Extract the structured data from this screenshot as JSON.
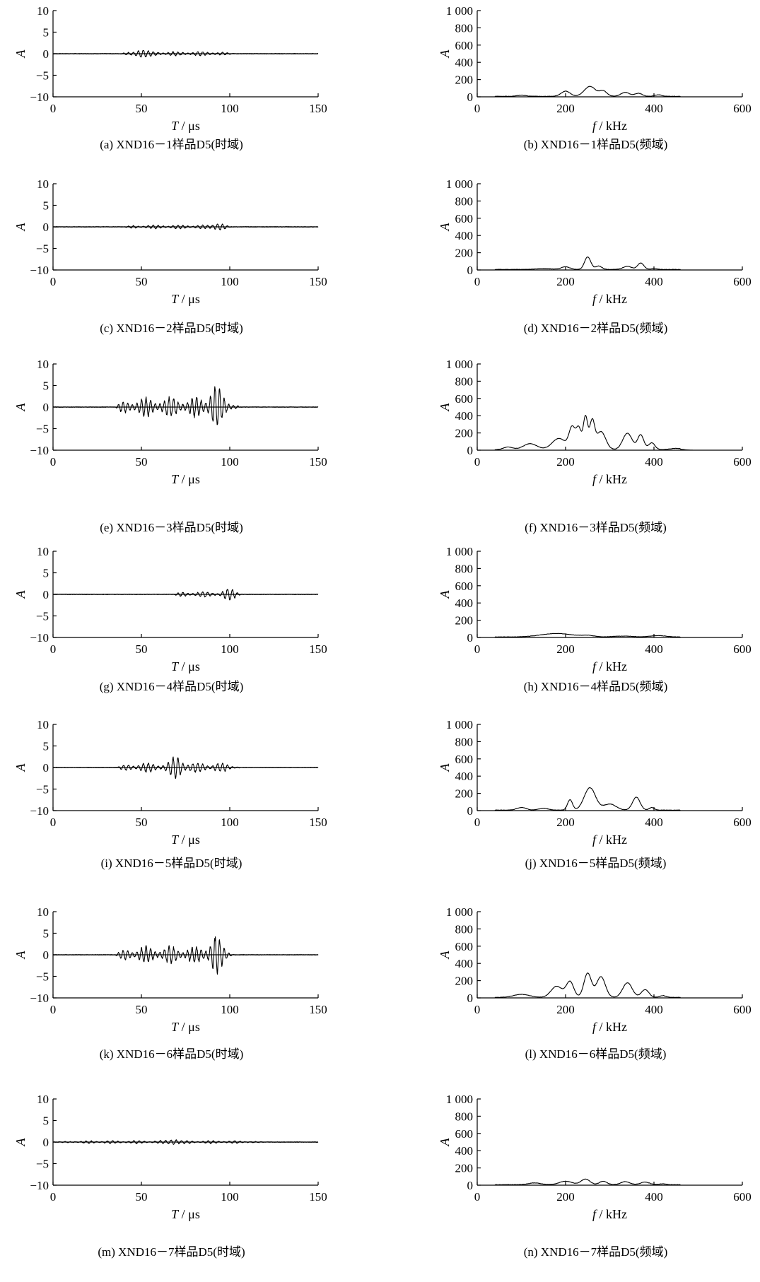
{
  "figure": {
    "chart_data": [
      {
        "id": "a",
        "type": "line",
        "domain": "time",
        "caption": "(a) XND16－1样品D5(时域)",
        "ylabel": "A",
        "xlabel_var": "T",
        "xlabel_unit": "/ μs",
        "xlim": [
          0,
          150
        ],
        "ylim": [
          -10,
          10
        ],
        "xticks": [
          "0",
          "50",
          "100",
          "150"
        ],
        "yticks": [
          "10",
          "5",
          "0",
          "−5",
          "−10"
        ],
        "signal": {
          "start": 38,
          "end": 102,
          "peak": 1.2,
          "peak_at": 50,
          "period": 2.8
        }
      },
      {
        "id": "b",
        "type": "line",
        "domain": "freq",
        "caption": "(b) XND16－1样品D5(频域)",
        "ylabel": "A",
        "xlabel_var": "f",
        "xlabel_unit": "/ kHz",
        "xlim": [
          0,
          600
        ],
        "ylim": [
          0,
          1000
        ],
        "xticks": [
          "0",
          "200",
          "400",
          "600"
        ],
        "yticks": [
          "1 000",
          "800",
          "600",
          "400",
          "200",
          "0"
        ],
        "peaks": [
          [
            100,
            12,
            15
          ],
          [
            200,
            60,
            14
          ],
          [
            255,
            115,
            18
          ],
          [
            285,
            60,
            12
          ],
          [
            335,
            45,
            14
          ],
          [
            365,
            35,
            12
          ],
          [
            410,
            18,
            10
          ]
        ]
      },
      {
        "id": "c",
        "type": "line",
        "domain": "time",
        "caption": "(c) XND16－2样品D5(时域)",
        "ylabel": "A",
        "xlabel_var": "T",
        "xlabel_unit": "/ μs",
        "xlim": [
          0,
          150
        ],
        "ylim": [
          -10,
          10
        ],
        "xticks": [
          "0",
          "50",
          "100",
          "150"
        ],
        "yticks": [
          "10",
          "5",
          "0",
          "−5",
          "−10"
        ],
        "signal": {
          "start": 40,
          "end": 101,
          "peak": 1.1,
          "peak_at": 94,
          "period": 2.8
        }
      },
      {
        "id": "d",
        "type": "line",
        "domain": "freq",
        "caption": "(d) XND16－2样品D5(频域)",
        "ylabel": "A",
        "xlabel_var": "f",
        "xlabel_unit": "/ kHz",
        "xlim": [
          0,
          600
        ],
        "ylim": [
          0,
          1000
        ],
        "xticks": [
          "0",
          "200",
          "400",
          "600"
        ],
        "yticks": [
          "1 000",
          "800",
          "600",
          "400",
          "200",
          "0"
        ],
        "peaks": [
          [
            150,
            10,
            25
          ],
          [
            200,
            30,
            14
          ],
          [
            250,
            145,
            10
          ],
          [
            275,
            40,
            10
          ],
          [
            340,
            35,
            14
          ],
          [
            370,
            75,
            10
          ],
          [
            400,
            10,
            10
          ]
        ]
      },
      {
        "id": "e",
        "type": "line",
        "domain": "time",
        "caption": "(e) XND16－3样品D5(时域)",
        "ylabel": "A",
        "xlabel_var": "T",
        "xlabel_unit": "/ μs",
        "xlim": [
          0,
          150
        ],
        "ylim": [
          -10,
          10
        ],
        "xticks": [
          "0",
          "50",
          "100",
          "150"
        ],
        "yticks": [
          "10",
          "5",
          "0",
          "−5",
          "−10"
        ],
        "signal": {
          "start": 35,
          "end": 106,
          "peak": 5.5,
          "peak_at": 92,
          "period": 2.6
        }
      },
      {
        "id": "f",
        "type": "line",
        "domain": "freq",
        "caption": "(f) XND16－3样品D5(频域)",
        "ylabel": "A",
        "xlabel_var": "f",
        "xlabel_unit": "/ kHz",
        "xlim": [
          0,
          600
        ],
        "ylim": [
          0,
          1000
        ],
        "xticks": [
          "0",
          "200",
          "400",
          "600"
        ],
        "yticks": [
          "1 000",
          "800",
          "600",
          "400",
          "200",
          "0"
        ],
        "peaks": [
          [
            70,
            30,
            15
          ],
          [
            120,
            70,
            22
          ],
          [
            185,
            130,
            22
          ],
          [
            215,
            250,
            10
          ],
          [
            230,
            240,
            8
          ],
          [
            245,
            380,
            7
          ],
          [
            260,
            320,
            8
          ],
          [
            280,
            210,
            15
          ],
          [
            340,
            190,
            15
          ],
          [
            370,
            170,
            10
          ],
          [
            395,
            80,
            10
          ],
          [
            450,
            15,
            20
          ]
        ]
      },
      {
        "id": "g",
        "type": "line",
        "domain": "time",
        "caption": "(g) XND16－4样品D5(时域)",
        "ylabel": "A",
        "xlabel_var": "T",
        "xlabel_unit": "/ μs",
        "xlim": [
          0,
          150
        ],
        "ylim": [
          -10,
          10
        ],
        "xticks": [
          "0",
          "50",
          "100",
          "150"
        ],
        "yticks": [
          "10",
          "5",
          "0",
          "−5",
          "−10"
        ],
        "signal": {
          "start": 68,
          "end": 107,
          "peak": 1.5,
          "peak_at": 100,
          "period": 2.8
        }
      },
      {
        "id": "h",
        "type": "line",
        "domain": "freq",
        "caption": "(h) XND16－4样品D5(频域)",
        "ylabel": "A",
        "xlabel_var": "f",
        "xlabel_unit": "/ kHz",
        "xlim": [
          0,
          600
        ],
        "ylim": [
          0,
          1000
        ],
        "xticks": [
          "0",
          "200",
          "400",
          "600"
        ],
        "yticks": [
          "1 000",
          "800",
          "600",
          "400",
          "200",
          "0"
        ],
        "peaks": [
          [
            180,
            40,
            50
          ],
          [
            250,
            15,
            20
          ],
          [
            330,
            10,
            30
          ],
          [
            410,
            15,
            25
          ]
        ]
      },
      {
        "id": "i",
        "type": "line",
        "domain": "time",
        "caption": "(i) XND16－5样品D5(时域)",
        "ylabel": "A",
        "xlabel_var": "T",
        "xlabel_unit": "/ μs",
        "xlim": [
          0,
          150
        ],
        "ylim": [
          -10,
          10
        ],
        "xticks": [
          "0",
          "50",
          "100",
          "150"
        ],
        "yticks": [
          "10",
          "5",
          "0",
          "−5",
          "−10"
        ],
        "signal": {
          "start": 36,
          "end": 106,
          "peak": 2.8,
          "peak_at": 70,
          "period": 2.8
        }
      },
      {
        "id": "j",
        "type": "line",
        "domain": "freq",
        "caption": "(j) XND16－5样品D5(频域)",
        "ylabel": "A",
        "xlabel_var": "f",
        "xlabel_unit": "/ kHz",
        "xlim": [
          0,
          600
        ],
        "ylim": [
          0,
          1000
        ],
        "xticks": [
          "0",
          "200",
          "400",
          "600"
        ],
        "yticks": [
          "1 000",
          "800",
          "600",
          "400",
          "200",
          "0"
        ],
        "peaks": [
          [
            100,
            30,
            15
          ],
          [
            150,
            20,
            15
          ],
          [
            210,
            120,
            8
          ],
          [
            255,
            260,
            18
          ],
          [
            300,
            70,
            20
          ],
          [
            360,
            150,
            12
          ],
          [
            395,
            30,
            8
          ]
        ]
      },
      {
        "id": "k",
        "type": "line",
        "domain": "time",
        "caption": "(k) XND16－6样品D5(时域)",
        "ylabel": "A",
        "xlabel_var": "T",
        "xlabel_unit": "/ μs",
        "xlim": [
          0,
          150
        ],
        "ylim": [
          -10,
          10
        ],
        "xticks": [
          "0",
          "50",
          "100",
          "150"
        ],
        "yticks": [
          "10",
          "5",
          "0",
          "−5",
          "−10"
        ],
        "signal": {
          "start": 35,
          "end": 103,
          "peak": 4.8,
          "peak_at": 92,
          "period": 2.6
        }
      },
      {
        "id": "l",
        "type": "line",
        "domain": "freq",
        "caption": "(l) XND16－6样品D5(频域)",
        "ylabel": "A",
        "xlabel_var": "f",
        "xlabel_unit": "/ kHz",
        "xlim": [
          0,
          600
        ],
        "ylim": [
          0,
          1000
        ],
        "xticks": [
          "0",
          "200",
          "400",
          "600"
        ],
        "yticks": [
          "1 000",
          "800",
          "600",
          "400",
          "200",
          "0"
        ],
        "peaks": [
          [
            100,
            35,
            25
          ],
          [
            180,
            130,
            18
          ],
          [
            210,
            180,
            12
          ],
          [
            250,
            280,
            12
          ],
          [
            280,
            240,
            14
          ],
          [
            340,
            170,
            15
          ],
          [
            380,
            90,
            12
          ],
          [
            420,
            20,
            10
          ]
        ]
      },
      {
        "id": "m",
        "type": "line",
        "domain": "time",
        "caption": "(m) XND16－7样品D5(时域)",
        "ylabel": "A",
        "xlabel_var": "T",
        "xlabel_unit": "/ μs",
        "xlim": [
          0,
          150
        ],
        "ylim": [
          -10,
          10
        ],
        "xticks": [
          "0",
          "50",
          "100",
          "150"
        ],
        "yticks": [
          "10",
          "5",
          "0",
          "−5",
          "−10"
        ],
        "signal": {
          "start": 2,
          "end": 120,
          "peak": 0.8,
          "peak_at": 68,
          "period": 3.0
        }
      },
      {
        "id": "n",
        "type": "line",
        "domain": "freq",
        "caption": "(n) XND16－7样品D5(频域)",
        "ylabel": "A",
        "xlabel_var": "f",
        "xlabel_unit": "/ kHz",
        "xlim": [
          0,
          600
        ],
        "ylim": [
          0,
          1000
        ],
        "xticks": [
          "0",
          "200",
          "400",
          "600"
        ],
        "yticks": [
          "1 000",
          "800",
          "600",
          "400",
          "200",
          "0"
        ],
        "peaks": [
          [
            130,
            20,
            20
          ],
          [
            200,
            40,
            20
          ],
          [
            245,
            65,
            14
          ],
          [
            285,
            40,
            12
          ],
          [
            335,
            35,
            14
          ],
          [
            380,
            30,
            14
          ],
          [
            420,
            10,
            10
          ]
        ]
      }
    ]
  }
}
